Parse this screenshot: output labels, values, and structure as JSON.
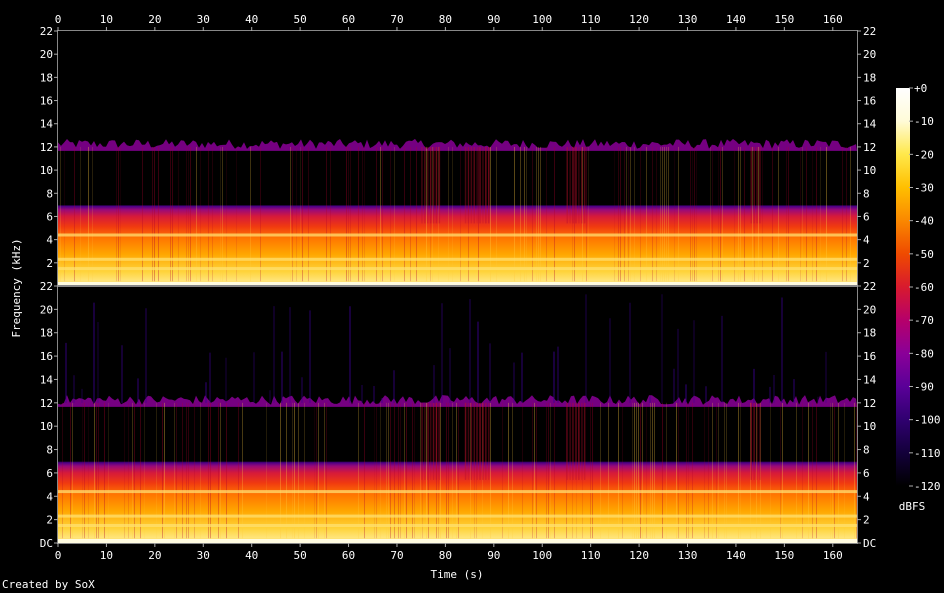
{
  "chart_data": {
    "type": "heatmap",
    "title": "",
    "xlabel": "Time (s)",
    "ylabel": "Frequency (kHz)",
    "xlim": [
      0,
      165
    ],
    "ylim_khz": [
      0,
      22
    ],
    "x_ticks": [
      "0",
      "10",
      "20",
      "30",
      "40",
      "50",
      "60",
      "70",
      "80",
      "90",
      "100",
      "110",
      "120",
      "130",
      "140",
      "150",
      "160"
    ],
    "y_ticks_top": [
      "2",
      "4",
      "6",
      "8",
      "10",
      "12",
      "14",
      "16",
      "18",
      "20",
      "22"
    ],
    "y_ticks_bottom": [
      "DC",
      "2",
      "4",
      "6",
      "8",
      "10",
      "12",
      "14",
      "16",
      "18",
      "20",
      "22"
    ],
    "channels": 2,
    "colorbar": {
      "label": "dBFS",
      "range": [
        -120,
        0
      ],
      "ticks": [
        "+0",
        "-10",
        "-20",
        "-30",
        "-40",
        "-50",
        "-60",
        "-70",
        "-80",
        "-90",
        "-100",
        "-110",
        "-120"
      ],
      "palette": [
        "#000000",
        "#13003a",
        "#300070",
        "#5a0098",
        "#8a0098",
        "#b6006a",
        "#d81a2e",
        "#ef4a00",
        "#fa8800",
        "#ffbf00",
        "#ffe84a",
        "#fffbd8",
        "#ffffff"
      ]
    },
    "content_cutoff_khz": 12,
    "strong_bands_khz": [
      0.3,
      1.5,
      2.3,
      4.4
    ],
    "loud_sections_s": [
      [
        75,
        79
      ],
      [
        84,
        89
      ],
      [
        105,
        109
      ],
      [
        143,
        145
      ]
    ]
  },
  "footer": "Created by SoX"
}
